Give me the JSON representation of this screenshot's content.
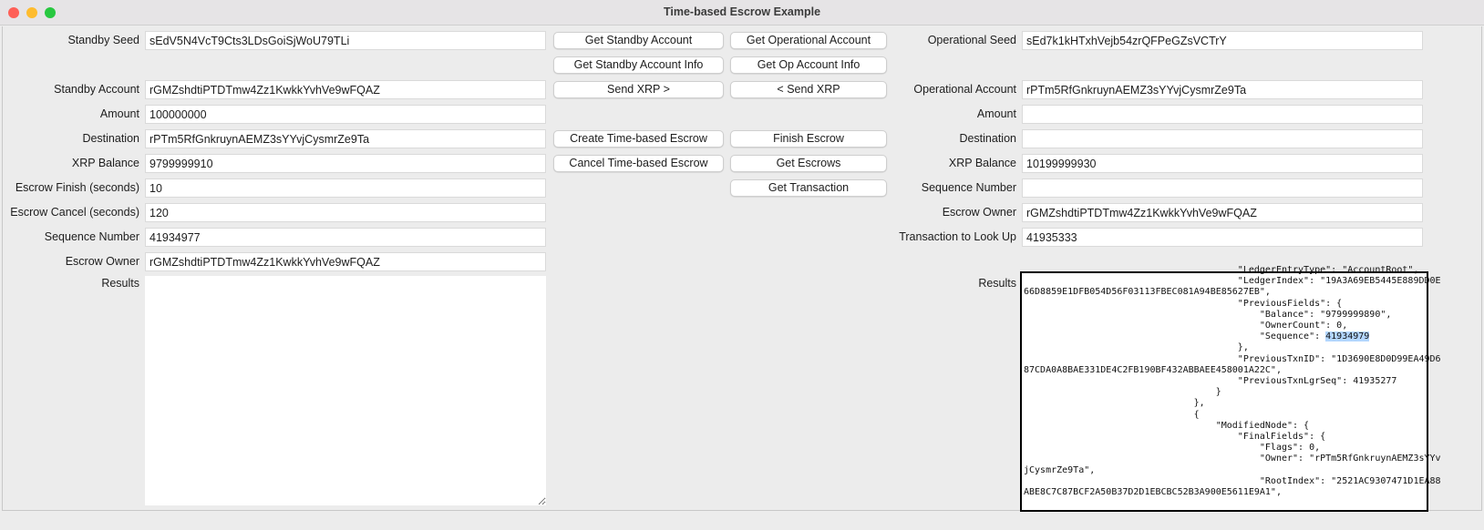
{
  "window": {
    "title": "Time-based Escrow Example",
    "lights": {
      "close": "#fe5f57",
      "minimize": "#febc2e",
      "zoom": "#28c840"
    }
  },
  "standby": {
    "seed_label": "Standby Seed",
    "seed": "sEdV5N4VcT9Cts3LDsGoiSjWoU79TLi",
    "account_label": "Standby Account",
    "account": "rGMZshdtiPTDTmw4Zz1KwkkYvhVe9wFQAZ",
    "amount_label": "Amount",
    "amount": "100000000",
    "destination_label": "Destination",
    "destination": "rPTm5RfGnkruynAEMZ3sYYvjCysmrZe9Ta",
    "balance_label": "XRP Balance",
    "balance": "9799999910",
    "escrow_finish_label": "Escrow Finish (seconds)",
    "escrow_finish": "10",
    "escrow_cancel_label": "Escrow Cancel (seconds)",
    "escrow_cancel": "120",
    "sequence_label": "Sequence Number",
    "sequence": "41934977",
    "escrow_owner_label": "Escrow Owner",
    "escrow_owner": "rGMZshdtiPTDTmw4Zz1KwkkYvhVe9wFQAZ",
    "results_label": "Results",
    "results": ""
  },
  "buttons": {
    "get_standby_account": "Get Standby Account",
    "get_operational_account": "Get Operational Account",
    "get_standby_info": "Get Standby Account Info",
    "get_op_info": "Get Op Account Info",
    "send_xrp_right": "Send XRP >",
    "send_xrp_left": "< Send XRP",
    "create_escrow": "Create Time-based Escrow",
    "finish_escrow": "Finish Escrow",
    "cancel_escrow": "Cancel Time-based Escrow",
    "get_escrows": "Get Escrows",
    "get_transaction": "Get Transaction"
  },
  "operational": {
    "seed_label": "Operational Seed",
    "seed": "sEd7k1kHTxhVejb54zrQFPeGZsVCTrY",
    "account_label": "Operational Account",
    "account": "rPTm5RfGnkruynAEMZ3sYYvjCysmrZe9Ta",
    "amount_label": "Amount",
    "amount": "",
    "destination_label": "Destination",
    "destination": "",
    "balance_label": "XRP Balance",
    "balance": "10199999930",
    "sequence_label": "Sequence Number",
    "sequence": "",
    "escrow_owner_label": "Escrow Owner",
    "escrow_owner": "rGMZshdtiPTDTmw4Zz1KwkkYvhVe9wFQAZ",
    "tx_label": "Transaction to Look Up",
    "tx": "41935333",
    "results_label": "Results",
    "selected_text": "41934979",
    "results_lines": [
      "                                       \"LedgerEntryType\": \"AccountRoot\",",
      "                                       \"LedgerIndex\": \"19A3A69EB5445E889DD0E",
      "66D8859E1DFB054D56F03113FBEC081A94BE85627EB\",",
      "                                       \"PreviousFields\": {",
      "                                           \"Balance\": \"9799999890\",",
      "                                           \"OwnerCount\": 0,",
      "                                           \"Sequence\": 41934979",
      "                                       },",
      "                                       \"PreviousTxnID\": \"1D3690E8D0D99EA49D6",
      "87CDA0A8BAE331DE4C2FB190BF432ABBAEE458001A22C\",",
      "                                       \"PreviousTxnLgrSeq\": 41935277",
      "                                   }",
      "                               },",
      "                               {",
      "                                   \"ModifiedNode\": {",
      "                                       \"FinalFields\": {",
      "                                           \"Flags\": 0,",
      "                                           \"Owner\": \"rPTm5RfGnkruynAEMZ3sYYv",
      "jCysmrZe9Ta\",",
      "                                           \"RootIndex\": \"2521AC9307471D1EA88",
      "ABE8C7C87BCF2A50B37D2D1EBCBC52B3A900E5611E9A1\","
    ]
  }
}
